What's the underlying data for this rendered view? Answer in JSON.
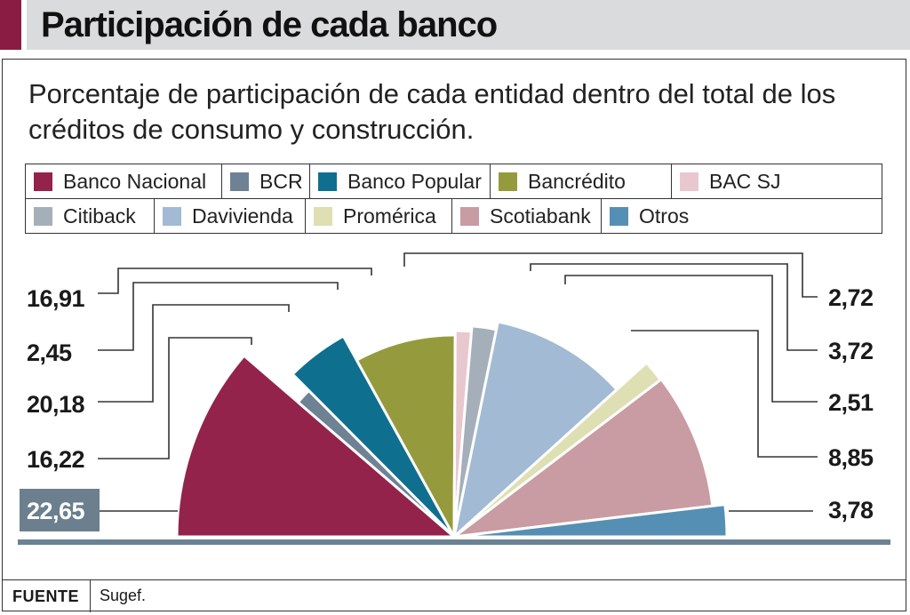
{
  "header": {
    "title": "Participación de cada banco"
  },
  "chart_data": {
    "type": "pie",
    "subtitle": "Porcentaje de participación de cada entidad dentro del total de los créditos de consumo y construcción.",
    "categories": [
      "Banco Nacional",
      "BCR",
      "Banco Popular",
      "Bancrédito",
      "BAC SJ",
      "Citiback",
      "Davivienda",
      "Promérica",
      "Scotiabank",
      "Otros"
    ],
    "values": [
      22.65,
      2.45,
      8.85,
      16.22,
      2.51,
      3.72,
      20.18,
      2.72,
      16.91,
      3.78
    ],
    "slices": [
      {
        "name": "Banco Nacional",
        "value": 22.65,
        "label": "",
        "color": "#93234b"
      },
      {
        "name": "BCR",
        "value": 2.45,
        "label": "",
        "color": "#6e8294"
      },
      {
        "name": "Banco Popular",
        "value": 8.85,
        "label": "",
        "color": "#0f6f8f"
      },
      {
        "name": "Bancrédito",
        "value": 16.22,
        "label": "",
        "color": "#959b3c"
      },
      {
        "name": "BAC SJ",
        "value": 2.51,
        "label": "",
        "color": "#e9c7cf"
      },
      {
        "name": "Citiback",
        "value": 3.72,
        "label": "",
        "color": "#a5afba"
      },
      {
        "name": "Davivienda",
        "value": 20.18,
        "label": "",
        "color": "#a2bad3"
      },
      {
        "name": "Promérica",
        "value": 2.72,
        "label": "",
        "color": "#dfdfb4"
      },
      {
        "name": "Scotiabank",
        "value": 16.91,
        "label": "",
        "color": "#c99ba2"
      },
      {
        "name": "Otros",
        "value": 3.78,
        "label": "",
        "color": "#568fb4"
      }
    ],
    "legend_placement": "top",
    "left_labels": [
      "16,91",
      "2,45",
      "20,18",
      "16,22",
      "22,65"
    ],
    "right_labels": [
      "2,72",
      "3,72",
      "2,51",
      "8,85",
      "3,78"
    ],
    "highlight_label": "22,65",
    "highlight_color": "#6b7f8f",
    "baseline_color": "#6b8294"
  },
  "legend": {
    "rows": [
      [
        {
          "label": "Banco Nacional",
          "color": "#93234b"
        },
        {
          "label": "BCR",
          "color": "#6e8294"
        },
        {
          "label": "Banco Popular",
          "color": "#0f6f8f"
        },
        {
          "label": "Bancrédito",
          "color": "#959b3c"
        },
        {
          "label": "BAC SJ",
          "color": "#e9c7cf"
        }
      ],
      [
        {
          "label": "Citiback",
          "color": "#a5afba"
        },
        {
          "label": "Davivienda",
          "color": "#a2bad3"
        },
        {
          "label": "Promérica",
          "color": "#dfdfb4"
        },
        {
          "label": "Scotiabank",
          "color": "#c99ba2"
        },
        {
          "label": "Otros",
          "color": "#568fb4"
        }
      ]
    ]
  },
  "footer": {
    "label": "FUENTE",
    "source": "Sugef."
  }
}
